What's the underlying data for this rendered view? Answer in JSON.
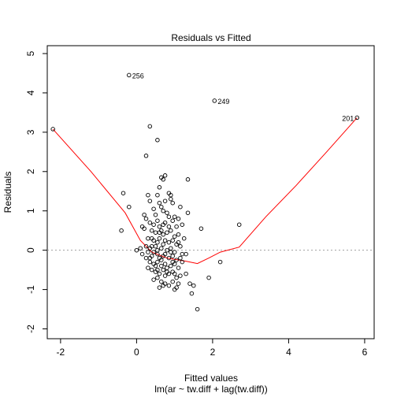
{
  "chart_data": {
    "type": "scatter",
    "title": "Residuals vs Fitted",
    "xlabel": "Fitted values",
    "sublabel": "lm(ar ~ tw.diff + lag(tw.diff))",
    "ylabel": "Residuals",
    "xlim": [
      -2.35,
      6.25
    ],
    "ylim": [
      -2.25,
      5.2
    ],
    "x_ticks": [
      -2,
      0,
      2,
      4,
      6
    ],
    "x_tick_labels": [
      "-2",
      "0",
      "2",
      "4",
      "6"
    ],
    "y_ticks": [
      -2,
      -1,
      0,
      1,
      2,
      3,
      4,
      5
    ],
    "y_tick_labels": [
      "-2",
      "-1",
      "0",
      "1",
      "2",
      "3",
      "4",
      "5"
    ],
    "reference_line": {
      "y": 0,
      "style": "dotted",
      "color": "#a0a0a0"
    },
    "smoother": {
      "color": "#ff0000",
      "points": [
        [
          -2.2,
          3.08
        ],
        [
          -1.2,
          2.0
        ],
        [
          -0.3,
          0.95
        ],
        [
          0.1,
          0.25
        ],
        [
          0.4,
          -0.05
        ],
        [
          0.8,
          -0.2
        ],
        [
          1.3,
          -0.28
        ],
        [
          1.6,
          -0.34
        ],
        [
          1.9,
          -0.2
        ],
        [
          2.2,
          -0.05
        ],
        [
          2.7,
          0.08
        ],
        [
          3.4,
          0.85
        ],
        [
          4.2,
          1.65
        ],
        [
          5.0,
          2.5
        ],
        [
          5.8,
          3.37
        ]
      ]
    },
    "labeled_points": [
      {
        "x": -0.2,
        "y": 4.45,
        "label": "256",
        "label_side": "right"
      },
      {
        "x": 2.05,
        "y": 3.8,
        "label": "249",
        "label_side": "right"
      },
      {
        "x": 5.8,
        "y": 3.37,
        "label": "201",
        "label_side": "left"
      }
    ],
    "points": [
      [
        -2.2,
        3.08
      ],
      [
        -0.2,
        4.45
      ],
      [
        2.05,
        3.8
      ],
      [
        5.8,
        3.37
      ],
      [
        2.7,
        0.65
      ],
      [
        1.6,
        -1.5
      ],
      [
        1.9,
        -0.7
      ],
      [
        2.2,
        -0.3
      ],
      [
        1.7,
        0.55
      ],
      [
        -0.35,
        1.45
      ],
      [
        -0.2,
        1.1
      ],
      [
        -0.4,
        0.5
      ],
      [
        0.35,
        3.15
      ],
      [
        0.55,
        2.8
      ],
      [
        0.25,
        2.4
      ],
      [
        0.65,
        1.85
      ],
      [
        0.75,
        1.9
      ],
      [
        0.7,
        1.8
      ],
      [
        1.35,
        1.8
      ],
      [
        0.3,
        1.4
      ],
      [
        0.35,
        1.25
      ],
      [
        0.55,
        1.4
      ],
      [
        0.6,
        1.2
      ],
      [
        0.65,
        1.1
      ],
      [
        0.85,
        1.45
      ],
      [
        0.9,
        1.4
      ],
      [
        0.95,
        1.2
      ],
      [
        1.15,
        1.1
      ],
      [
        1.35,
        0.95
      ],
      [
        0.45,
        1.05
      ],
      [
        0.7,
        1.0
      ],
      [
        0.8,
        0.95
      ],
      [
        1.0,
        0.85
      ],
      [
        1.1,
        0.8
      ],
      [
        0.25,
        0.8
      ],
      [
        0.35,
        0.7
      ],
      [
        0.45,
        0.65
      ],
      [
        0.55,
        0.75
      ],
      [
        0.6,
        0.6
      ],
      [
        0.75,
        0.7
      ],
      [
        0.85,
        0.6
      ],
      [
        0.95,
        0.75
      ],
      [
        1.05,
        0.6
      ],
      [
        1.2,
        0.65
      ],
      [
        0.2,
        0.55
      ],
      [
        0.4,
        0.5
      ],
      [
        0.5,
        0.45
      ],
      [
        0.65,
        0.5
      ],
      [
        0.7,
        0.4
      ],
      [
        0.8,
        0.45
      ],
      [
        0.9,
        0.5
      ],
      [
        1.0,
        0.35
      ],
      [
        1.1,
        0.4
      ],
      [
        1.25,
        0.3
      ],
      [
        0.3,
        0.3
      ],
      [
        0.45,
        0.25
      ],
      [
        0.55,
        0.2
      ],
      [
        0.6,
        0.3
      ],
      [
        0.75,
        0.25
      ],
      [
        0.85,
        0.2
      ],
      [
        0.95,
        0.25
      ],
      [
        1.05,
        0.15
      ],
      [
        1.15,
        0.1
      ],
      [
        0.1,
        0.05
      ],
      [
        0.0,
        0.0
      ],
      [
        0.25,
        0.1
      ],
      [
        0.35,
        0.05
      ],
      [
        0.5,
        0.1
      ],
      [
        0.65,
        0.05
      ],
      [
        0.8,
        0.0
      ],
      [
        0.9,
        0.05
      ],
      [
        1.0,
        -0.05
      ],
      [
        1.2,
        -0.1
      ],
      [
        0.15,
        -0.1
      ],
      [
        0.3,
        -0.05
      ],
      [
        0.4,
        -0.15
      ],
      [
        0.55,
        -0.1
      ],
      [
        0.6,
        -0.2
      ],
      [
        0.7,
        -0.15
      ],
      [
        0.85,
        -0.2
      ],
      [
        0.95,
        -0.15
      ],
      [
        1.05,
        -0.25
      ],
      [
        1.15,
        -0.2
      ],
      [
        1.3,
        -0.1
      ],
      [
        0.35,
        -0.3
      ],
      [
        0.45,
        -0.35
      ],
      [
        0.55,
        -0.3
      ],
      [
        0.65,
        -0.4
      ],
      [
        0.75,
        -0.35
      ],
      [
        0.8,
        -0.45
      ],
      [
        0.9,
        -0.4
      ],
      [
        1.0,
        -0.35
      ],
      [
        1.1,
        -0.45
      ],
      [
        1.2,
        -0.3
      ],
      [
        1.3,
        -0.6
      ],
      [
        0.4,
        -0.5
      ],
      [
        0.5,
        -0.55
      ],
      [
        0.6,
        -0.6
      ],
      [
        0.7,
        -0.5
      ],
      [
        0.75,
        -0.65
      ],
      [
        0.85,
        -0.6
      ],
      [
        0.95,
        -0.55
      ],
      [
        1.05,
        -0.7
      ],
      [
        1.15,
        -0.65
      ],
      [
        0.45,
        -0.75
      ],
      [
        0.55,
        -0.7
      ],
      [
        0.65,
        -0.8
      ],
      [
        0.75,
        -0.85
      ],
      [
        0.85,
        -0.9
      ],
      [
        0.95,
        -0.8
      ],
      [
        1.05,
        -0.95
      ],
      [
        1.1,
        -0.85
      ],
      [
        0.7,
        -0.9
      ],
      [
        1.4,
        -0.85
      ],
      [
        1.45,
        -1.1
      ],
      [
        1.5,
        -0.9
      ],
      [
        1.0,
        -1.0
      ],
      [
        0.6,
        -0.95
      ],
      [
        0.5,
        -0.4
      ],
      [
        0.3,
        -0.45
      ],
      [
        0.25,
        -0.2
      ],
      [
        0.55,
        0.0
      ],
      [
        0.7,
        0.15
      ],
      [
        0.9,
        -0.05
      ],
      [
        0.2,
        0.9
      ],
      [
        0.15,
        0.6
      ],
      [
        0.75,
        1.25
      ],
      [
        0.6,
        1.6
      ],
      [
        0.9,
        1.3
      ],
      [
        0.5,
        0.9
      ],
      [
        0.4,
        0.3
      ],
      [
        0.45,
        -0.05
      ],
      [
        0.65,
        -0.25
      ],
      [
        0.8,
        -0.55
      ],
      [
        1.0,
        -0.6
      ],
      [
        0.35,
        -0.2
      ],
      [
        0.6,
        0.45
      ],
      [
        0.85,
        0.85
      ],
      [
        0.7,
        0.65
      ],
      [
        1.1,
        0.2
      ],
      [
        0.95,
        -0.3
      ],
      [
        0.55,
        -0.5
      ],
      [
        0.75,
        -0.1
      ],
      [
        0.4,
        0.1
      ]
    ]
  }
}
